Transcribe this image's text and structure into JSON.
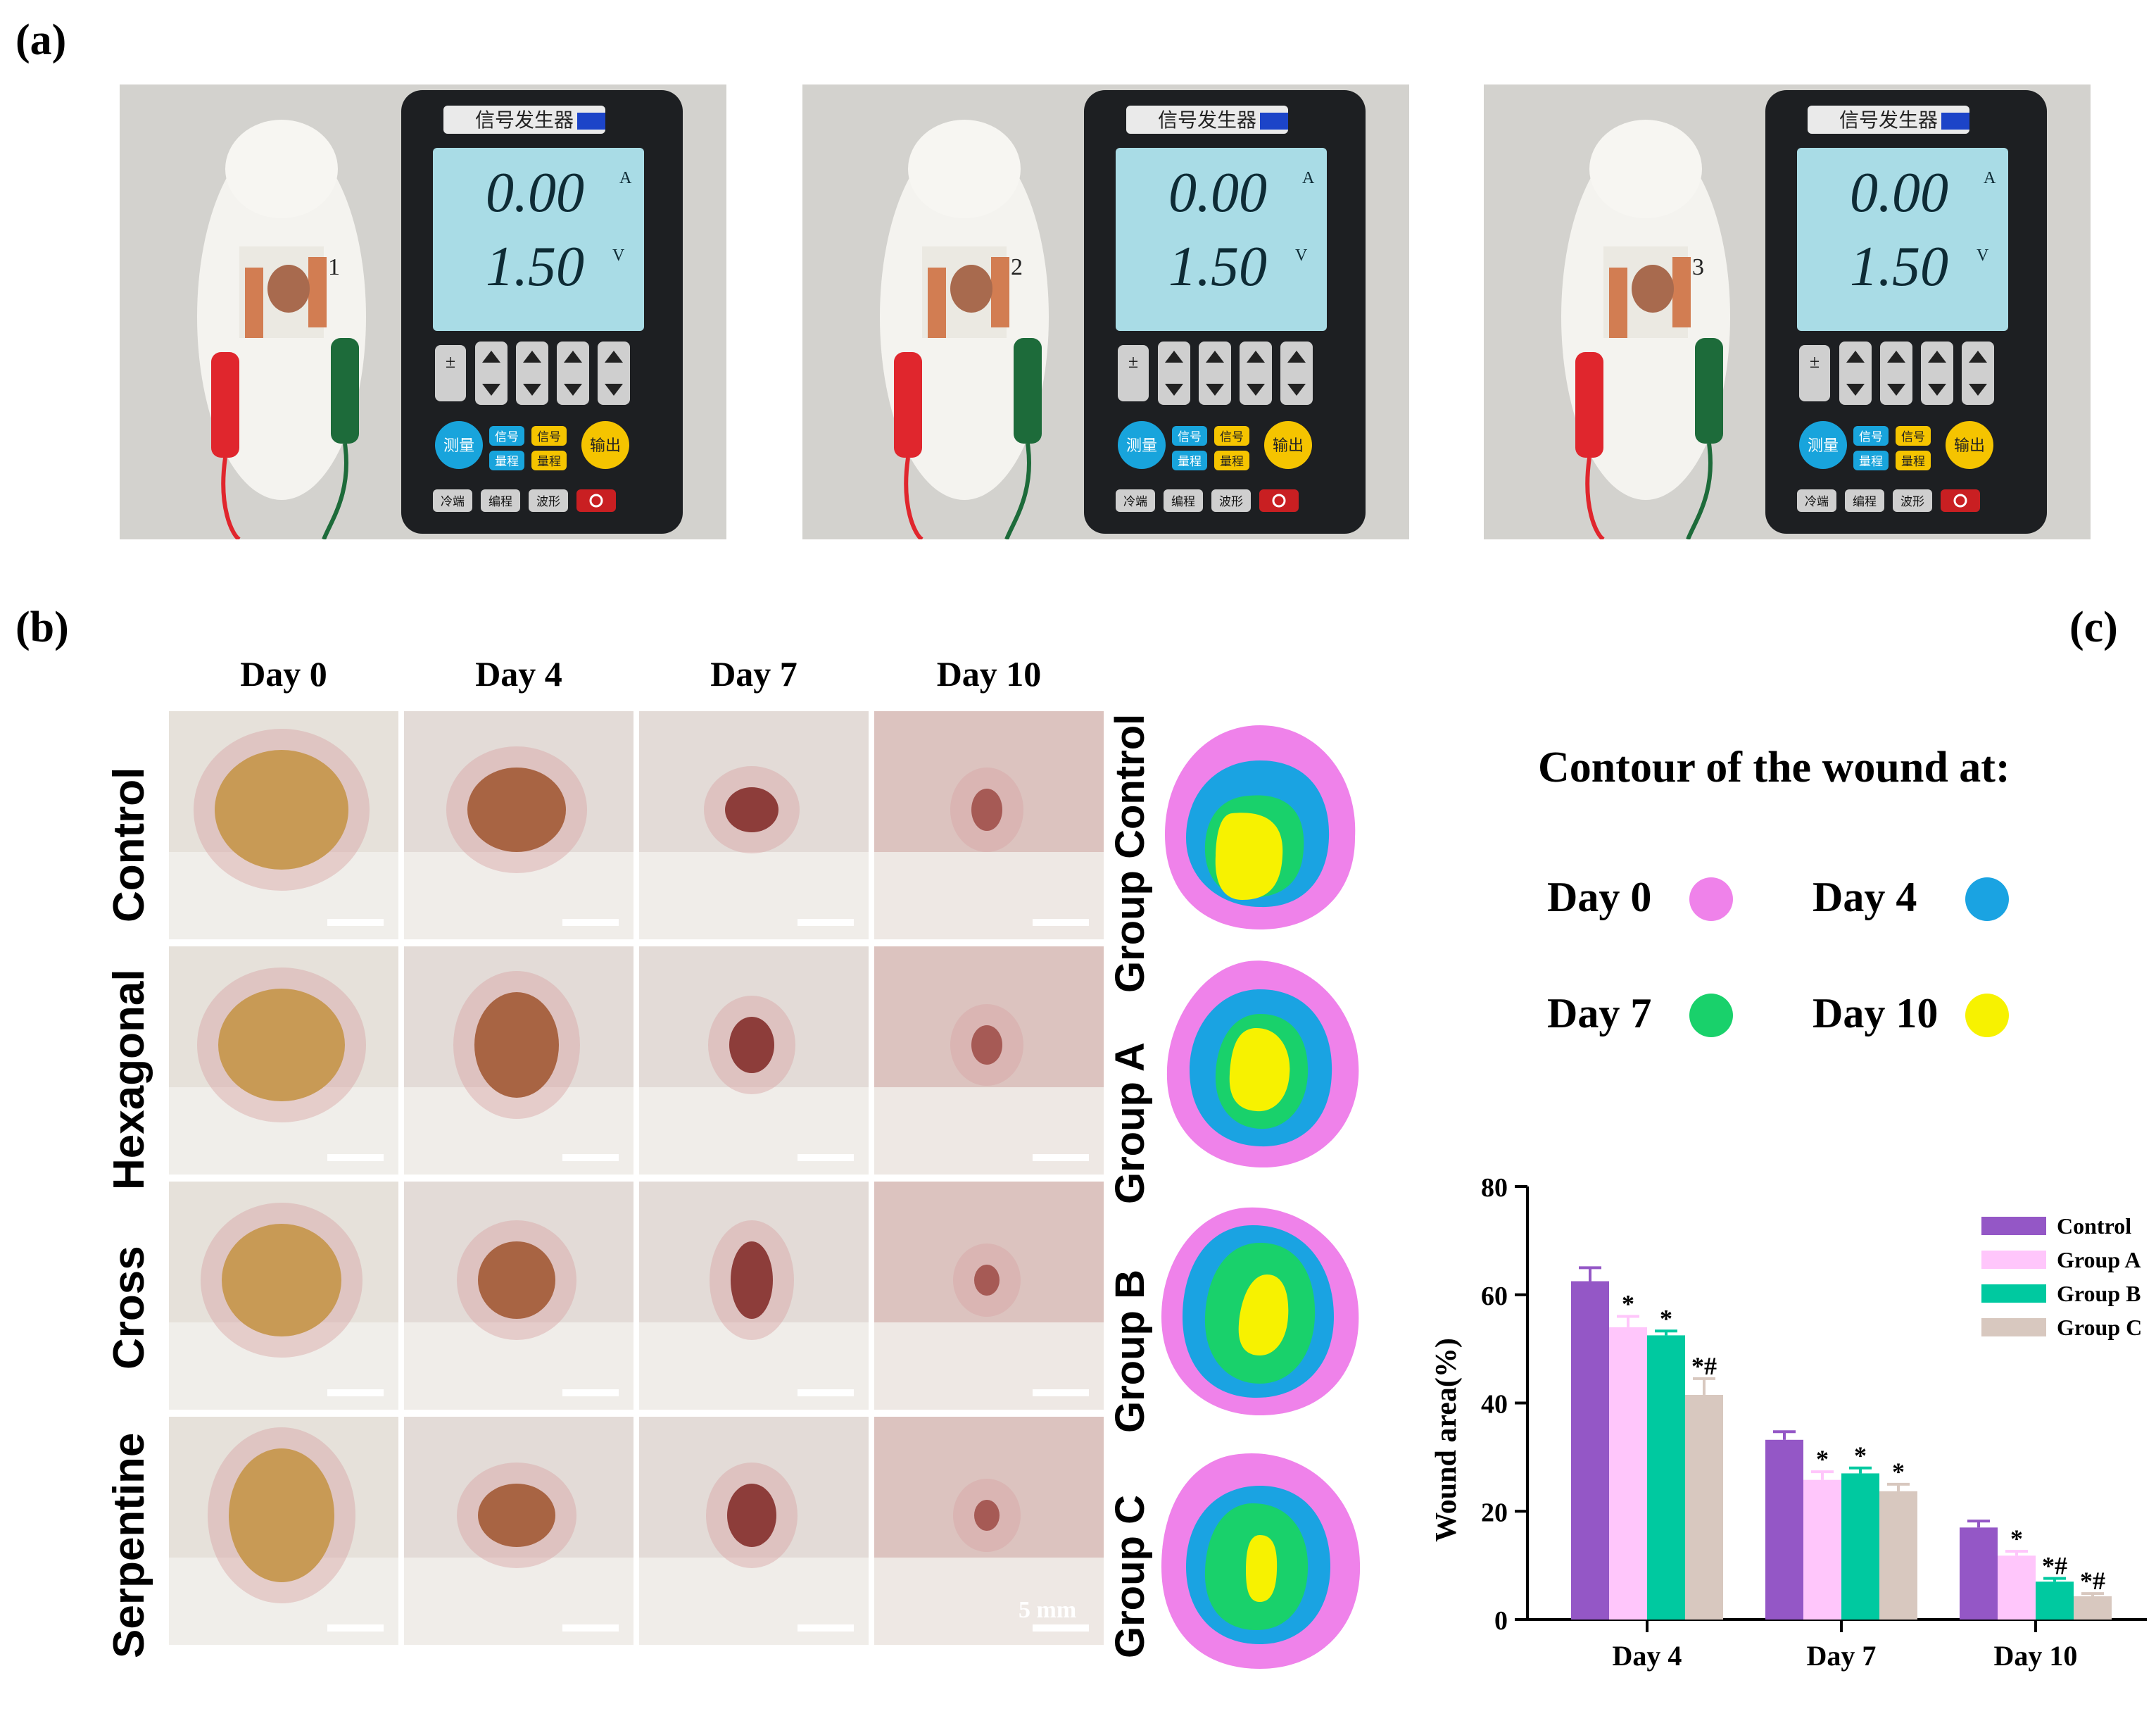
{
  "panels": {
    "a": "(a)",
    "b": "(b)",
    "c": "(c)"
  },
  "device": {
    "title": "信号发生器",
    "reading_current": "0.00",
    "current_unit": "A",
    "reading_voltage": "1.50",
    "voltage_unit": "V",
    "btn_measure": "测量",
    "btn_signal": "信号",
    "btn_signal2": "信号",
    "btn_output": "输出",
    "btn_range": "量程",
    "btn_range2": "量程",
    "btn_cold": "冷端",
    "btn_program": "编程",
    "btn_wave": "波形",
    "pm": "±"
  },
  "mouse_labels": [
    "1",
    "2",
    "3"
  ],
  "days": [
    "Day 0",
    "Day 4",
    "Day 7",
    "Day 10"
  ],
  "rows": [
    "Control",
    "Hexagonal",
    "Cross",
    "Serpentine"
  ],
  "groups": [
    "Group Control",
    "Group A",
    "Group B",
    "Group C"
  ],
  "scale_label": "5 mm",
  "legend": {
    "title": "Contour of  the wound at:",
    "items": [
      {
        "label": "Day 0",
        "color": "#ef82ea"
      },
      {
        "label": "Day 4",
        "color": "#1aa3e2"
      },
      {
        "label": "Day 7",
        "color": "#19d16b"
      },
      {
        "label": "Day 10",
        "color": "#f7f200"
      }
    ]
  },
  "colors": {
    "control": "#9457c6",
    "group_a": "#ffc6fb",
    "group_b": "#00c9a0",
    "group_c": "#d8c8bf"
  },
  "chart_data": {
    "type": "bar",
    "ylabel": "Wound area(%)",
    "xlabel": "",
    "ylim": [
      0,
      80
    ],
    "yticks": [
      0,
      20,
      40,
      60,
      80
    ],
    "categories": [
      "Day 4",
      "Day 7",
      "Day 10"
    ],
    "series": [
      {
        "name": "Control",
        "values": [
          62.5,
          33.2,
          17.0
        ],
        "errors": [
          2.5,
          1.5,
          1.2
        ],
        "color": "#9457c6",
        "marks": [
          "",
          "",
          ""
        ]
      },
      {
        "name": "Group A",
        "values": [
          54.0,
          25.8,
          11.8
        ],
        "errors": [
          2.0,
          1.5,
          0.8
        ],
        "color": "#ffc6fb",
        "marks": [
          "*",
          "*",
          "*"
        ]
      },
      {
        "name": "Group B",
        "values": [
          52.5,
          27.0,
          7.0
        ],
        "errors": [
          0.8,
          1.0,
          0.6
        ],
        "color": "#00c9a0",
        "marks": [
          "*",
          "*",
          "*#"
        ]
      },
      {
        "name": "Group C",
        "values": [
          41.5,
          23.7,
          4.3
        ],
        "errors": [
          3.0,
          1.3,
          0.5
        ],
        "color": "#d8c8bf",
        "marks": [
          "*#",
          "*",
          "*#"
        ]
      }
    ]
  }
}
